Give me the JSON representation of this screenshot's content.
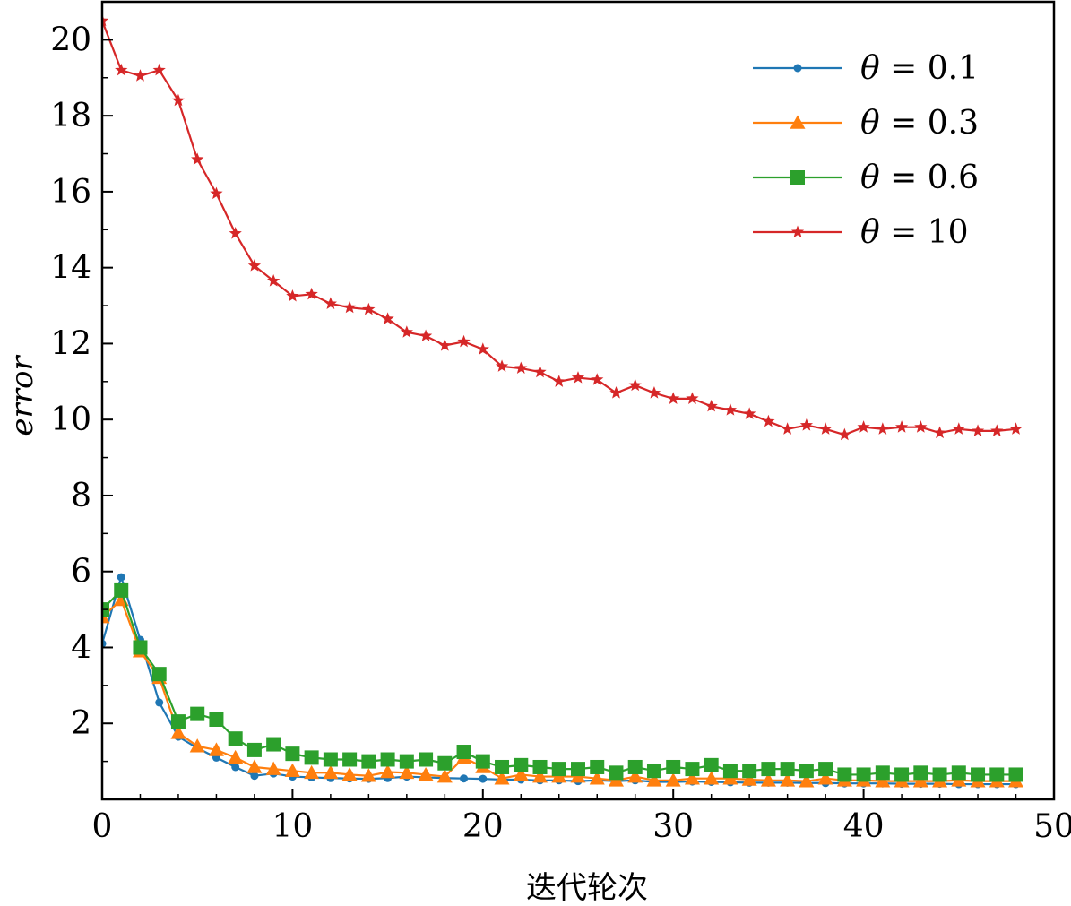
{
  "chart_data": {
    "type": "line",
    "xlabel": "迭代轮次",
    "ylabel": "error",
    "xlim": [
      0,
      50
    ],
    "ylim": [
      0,
      21
    ],
    "xticks": [
      0,
      10,
      20,
      30,
      40,
      50
    ],
    "yticks": [
      2,
      4,
      6,
      8,
      10,
      12,
      14,
      16,
      18,
      20
    ],
    "tick_direction": "in",
    "grid": false,
    "legend_position": "top-right",
    "x": [
      0,
      1,
      2,
      3,
      4,
      5,
      6,
      7,
      8,
      9,
      10,
      11,
      12,
      13,
      14,
      15,
      16,
      17,
      18,
      19,
      20,
      21,
      22,
      23,
      24,
      25,
      26,
      27,
      28,
      29,
      30,
      31,
      32,
      33,
      34,
      35,
      36,
      37,
      38,
      39,
      40,
      41,
      42,
      43,
      44,
      45,
      46,
      47,
      48
    ],
    "series": [
      {
        "name": "θ = 0.1",
        "legend_symbol": "θ",
        "legend_value": "0.1",
        "color": "#1f77b4",
        "marker": "dot",
        "values": [
          4.1,
          5.85,
          4.2,
          2.55,
          1.65,
          1.35,
          1.1,
          0.85,
          0.62,
          0.68,
          0.6,
          0.58,
          0.56,
          0.55,
          0.54,
          0.56,
          0.6,
          0.58,
          0.56,
          0.55,
          0.54,
          0.52,
          0.52,
          0.5,
          0.5,
          0.48,
          0.5,
          0.48,
          0.5,
          0.46,
          0.46,
          0.47,
          0.46,
          0.45,
          0.44,
          0.44,
          0.44,
          0.43,
          0.43,
          0.42,
          0.42,
          0.42,
          0.41,
          0.41,
          0.41,
          0.4,
          0.4,
          0.4,
          0.4
        ]
      },
      {
        "name": "θ = 0.3",
        "legend_symbol": "θ",
        "legend_value": "0.3",
        "color": "#ff7f0e",
        "marker": "triangle",
        "values": [
          4.8,
          5.25,
          3.9,
          3.2,
          1.75,
          1.4,
          1.3,
          1.1,
          0.85,
          0.8,
          0.75,
          0.7,
          0.7,
          0.65,
          0.62,
          0.72,
          0.7,
          0.65,
          0.6,
          1.1,
          0.85,
          0.55,
          0.65,
          0.6,
          0.6,
          0.6,
          0.55,
          0.5,
          0.6,
          0.5,
          0.5,
          0.55,
          0.55,
          0.55,
          0.52,
          0.5,
          0.5,
          0.48,
          0.55,
          0.5,
          0.5,
          0.48,
          0.48,
          0.48,
          0.48,
          0.5,
          0.48,
          0.48,
          0.48
        ]
      },
      {
        "name": "θ = 0.6",
        "legend_symbol": "θ",
        "legend_value": "0.6",
        "color": "#2ca02c",
        "marker": "square",
        "values": [
          5.0,
          5.5,
          4.0,
          3.3,
          2.05,
          2.25,
          2.1,
          1.6,
          1.3,
          1.45,
          1.2,
          1.1,
          1.05,
          1.05,
          1.0,
          1.05,
          1.0,
          1.05,
          0.95,
          1.25,
          1.0,
          0.85,
          0.9,
          0.85,
          0.8,
          0.8,
          0.85,
          0.7,
          0.85,
          0.75,
          0.85,
          0.8,
          0.9,
          0.75,
          0.75,
          0.8,
          0.8,
          0.75,
          0.8,
          0.65,
          0.65,
          0.7,
          0.65,
          0.7,
          0.65,
          0.7,
          0.65,
          0.65,
          0.65
        ]
      },
      {
        "name": "θ = 10",
        "legend_symbol": "θ",
        "legend_value": "10",
        "color": "#d62728",
        "marker": "star",
        "values": [
          20.5,
          19.2,
          19.05,
          19.2,
          18.4,
          16.85,
          15.95,
          14.9,
          14.05,
          13.65,
          13.25,
          13.3,
          13.05,
          12.95,
          12.9,
          12.65,
          12.3,
          12.2,
          11.95,
          12.05,
          11.85,
          11.4,
          11.35,
          11.25,
          11.0,
          11.1,
          11.05,
          10.7,
          10.9,
          10.7,
          10.55,
          10.55,
          10.35,
          10.25,
          10.15,
          9.95,
          9.75,
          9.85,
          9.75,
          9.6,
          9.8,
          9.75,
          9.8,
          9.8,
          9.65,
          9.75,
          9.7,
          9.7,
          9.75
        ]
      }
    ]
  }
}
